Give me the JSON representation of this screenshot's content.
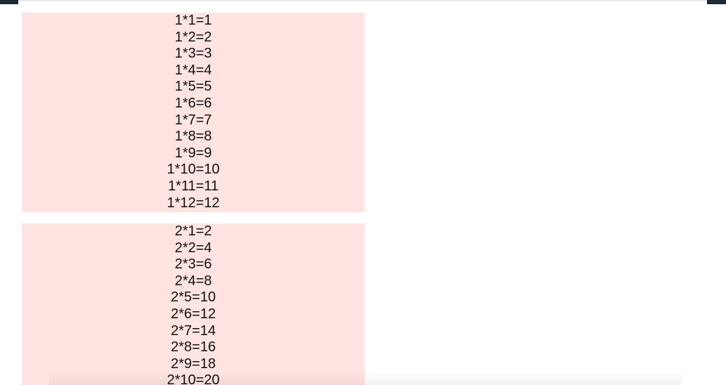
{
  "colors": {
    "block_background": "#ffe4e1",
    "text": "#111111",
    "edge": "#1e2a33"
  },
  "blocks": [
    {
      "rows": [
        "1*1=1",
        "1*2=2",
        "1*3=3",
        "1*4=4",
        "1*5=5",
        "1*6=6",
        "1*7=7",
        "1*8=8",
        "1*9=9",
        "1*10=10",
        "1*11=11",
        "1*12=12"
      ]
    },
    {
      "rows": [
        "2*1=2",
        "2*2=4",
        "2*3=6",
        "2*4=8",
        "2*5=10",
        "2*6=12",
        "2*7=14",
        "2*8=16",
        "2*9=18",
        "2*10=20"
      ]
    }
  ]
}
